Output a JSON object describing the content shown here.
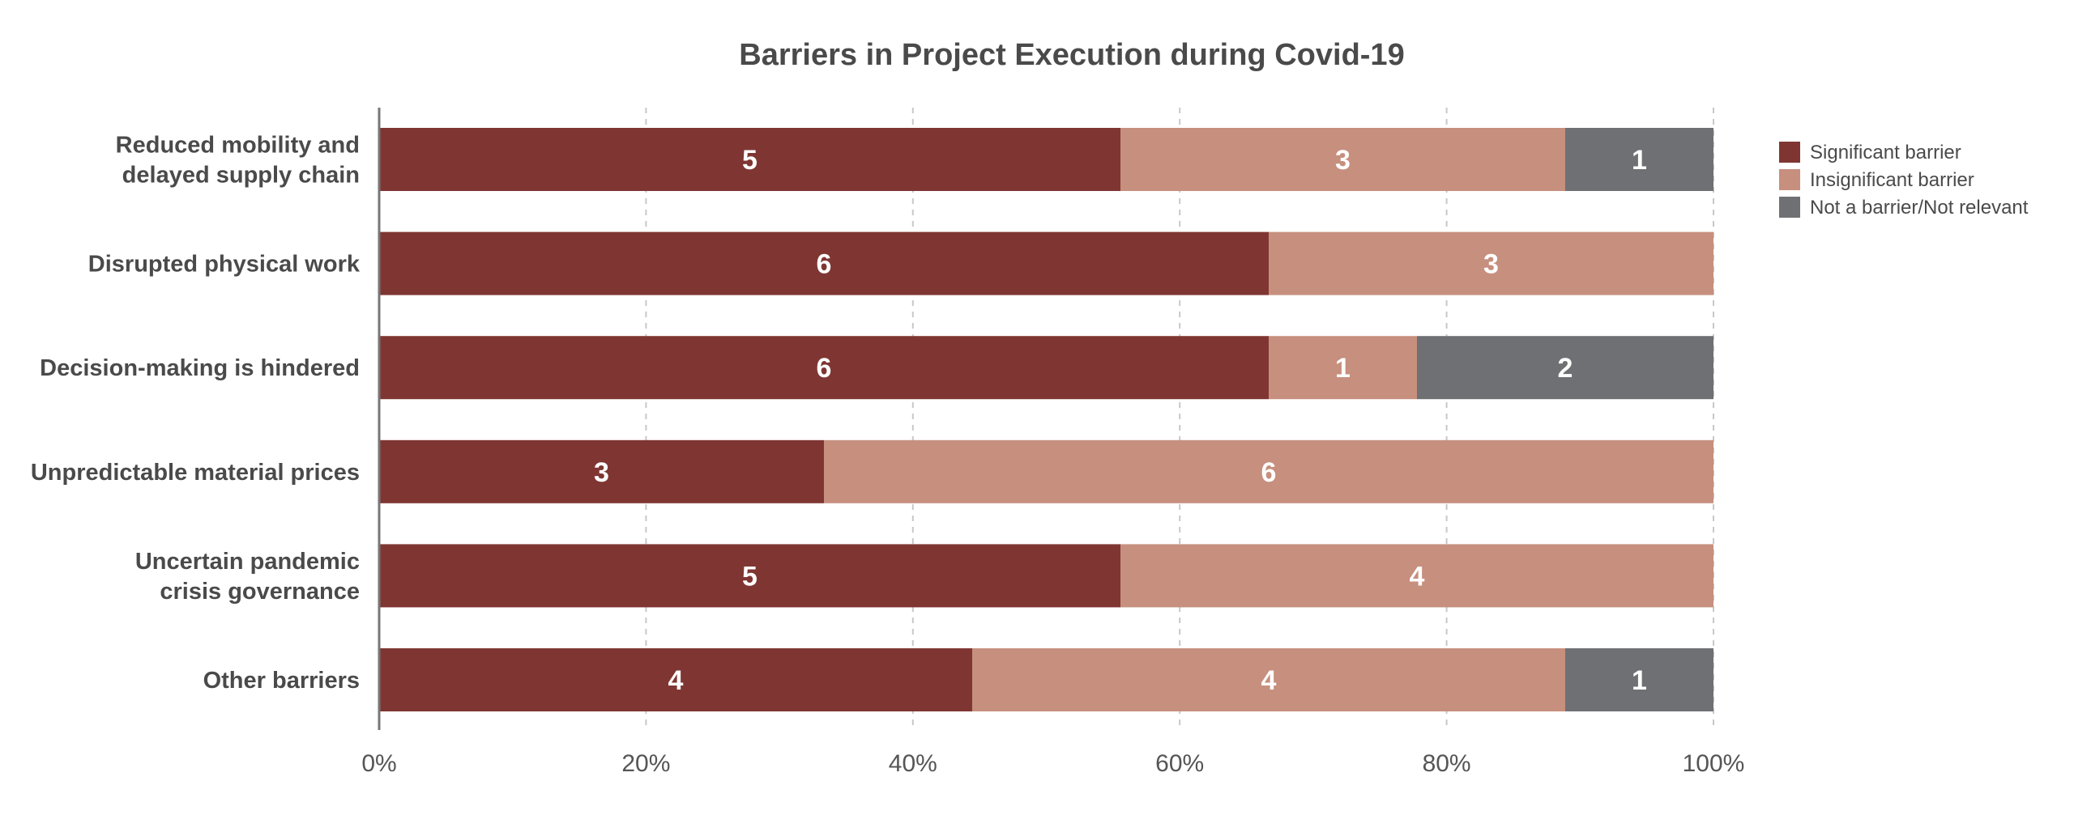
{
  "chart_data": {
    "type": "bar",
    "orientation": "horizontal",
    "stacked": "percent",
    "title": "Barriers in Project Execution during Covid-19",
    "categories": [
      [
        "Reduced mobility and",
        "delayed supply chain"
      ],
      [
        "Disrupted physical work"
      ],
      [
        "Decision-making is hindered"
      ],
      [
        "Unpredictable material prices"
      ],
      [
        "Uncertain pandemic",
        "crisis governance"
      ],
      [
        "Other barriers"
      ]
    ],
    "series": [
      {
        "name": "Significant barrier",
        "color": "#7f3632",
        "values": [
          5,
          6,
          6,
          3,
          5,
          4
        ]
      },
      {
        "name": "Insignificant barrier",
        "color": "#c68f7e",
        "values": [
          3,
          3,
          1,
          6,
          4,
          4
        ]
      },
      {
        "name": "Not a barrier/Not relevant",
        "color": "#6e7073",
        "values": [
          1,
          0,
          2,
          0,
          0,
          1
        ]
      }
    ],
    "xticks": [
      "0%",
      "20%",
      "40%",
      "60%",
      "80%",
      "100%"
    ],
    "xlim": [
      0,
      100
    ],
    "grid": "vertical-dashed",
    "legend_position": "right"
  }
}
